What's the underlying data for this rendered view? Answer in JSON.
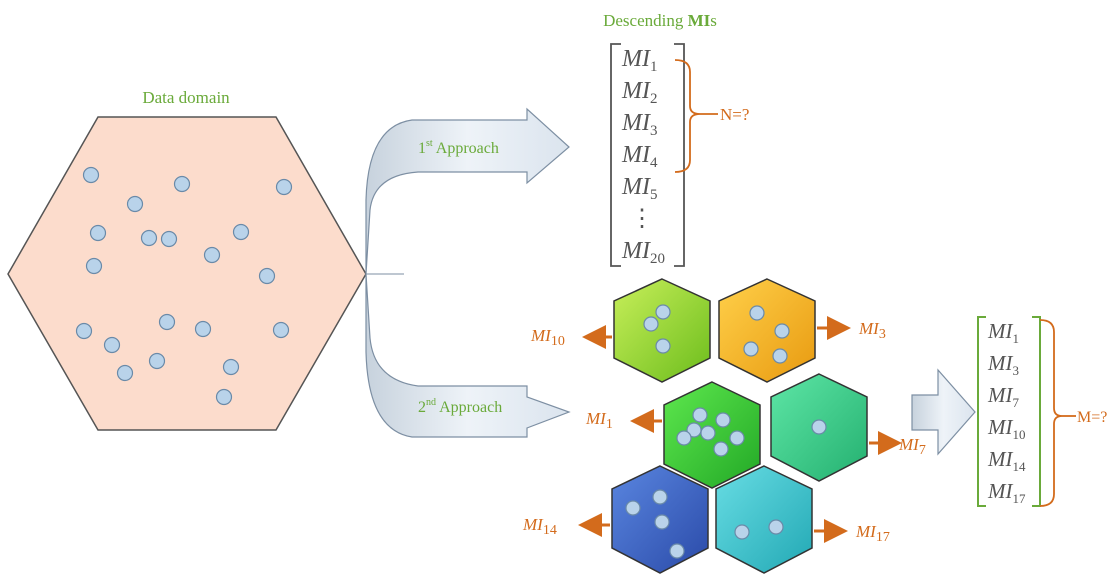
{
  "title": {
    "text": "Descending ",
    "bold": "MI",
    "suffix": "s"
  },
  "data_domain_label": "Data domain",
  "approach1": {
    "num": "1",
    "sup": "st",
    "text": " Approach"
  },
  "approach2": {
    "num": "2",
    "sup": "nd",
    "text": " Approach"
  },
  "n_label": "N=?",
  "m_label": "M=?",
  "mi_prefix": "MI",
  "vector1": {
    "items": [
      "1",
      "2",
      "3",
      "4",
      "5",
      "⋮",
      "20"
    ]
  },
  "vector2": {
    "items": [
      "1",
      "3",
      "7",
      "10",
      "14",
      "17"
    ]
  },
  "cluster_labels": {
    "c1": "10",
    "c2": "3",
    "c3": "1",
    "c4": "7",
    "c5": "14",
    "c6": "17"
  },
  "colors": {
    "domain_fill": "#fcdccc",
    "label_green": "#6aaa3a",
    "orange": "#d36b1c",
    "dot": "#b9d3ea",
    "hex_lime": "#9ed83a",
    "hex_gold": "#f0b020",
    "hex_green": "#3cc43a",
    "hex_mint": "#3ccc88",
    "hex_blue": "#3a64c2",
    "hex_cyan": "#3ec4cc"
  }
}
